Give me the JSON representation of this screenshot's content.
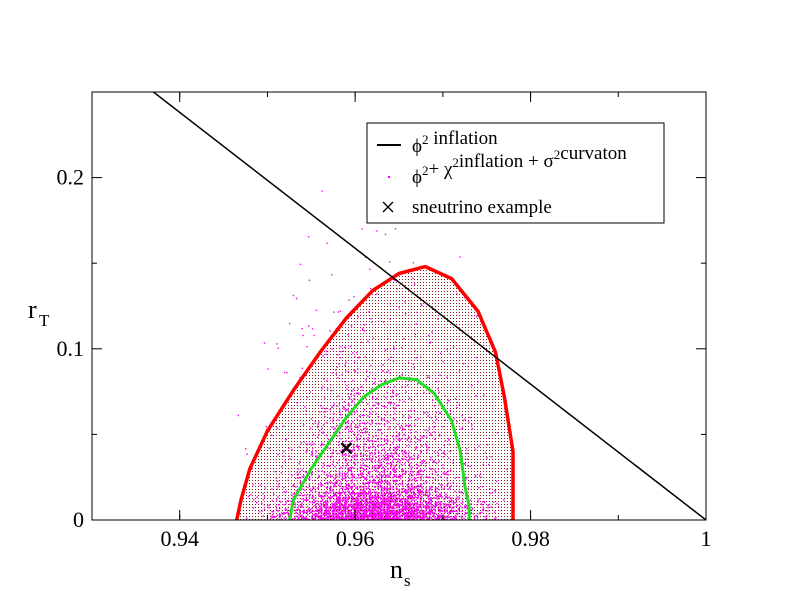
{
  "chart_data": {
    "type": "scatter",
    "x_axis": {
      "label": "n",
      "label_sub": "s",
      "range": [
        0.93,
        1.0
      ],
      "ticks": [
        0.94,
        0.96,
        0.98,
        1.0
      ],
      "tick_labels": [
        "0.94",
        "0.96",
        "0.98",
        "1"
      ]
    },
    "y_axis": {
      "label": "r",
      "label_sub": "T",
      "range": [
        0,
        0.25
      ],
      "ticks": [
        0,
        0.1,
        0.2
      ],
      "tick_labels": [
        "0",
        "0.1",
        "0.2"
      ]
    },
    "grid": false,
    "legend_position": "top-right",
    "legend": [
      {
        "text": "ϕ² inflation",
        "parts": [
          [
            "ϕ",
            ""
          ],
          [
            "2",
            "sup"
          ],
          [
            " inflation",
            ""
          ]
        ],
        "marker": "line",
        "color": "#000000"
      },
      {
        "text": "ϕ²+ χ²inflation + σ²curvaton",
        "parts": [
          [
            "ϕ",
            ""
          ],
          [
            "2",
            "sup"
          ],
          [
            "+ χ",
            ""
          ],
          [
            "2",
            "sup"
          ],
          [
            "inflation + σ",
            ""
          ],
          [
            "2",
            "sup"
          ],
          [
            "curvaton",
            ""
          ]
        ],
        "marker": "dot",
        "color": "#ff00ff"
      },
      {
        "text": "sneutrino example",
        "parts": [
          [
            "sneutrino example",
            ""
          ]
        ],
        "marker": "cross",
        "color": "#000000"
      }
    ],
    "series": [
      {
        "name": "ϕ² inflation",
        "kind": "line",
        "color": "#000000",
        "x": [
          0.937,
          1.0
        ],
        "y": [
          0.25,
          0.0
        ]
      },
      {
        "name": "ϕ²+ χ²inflation + σ²curvaton",
        "kind": "scatter-cloud",
        "color": "#ff00ff",
        "x_range": [
          0.936,
          0.981
        ],
        "y_range": [
          0,
          0.24
        ]
      },
      {
        "name": "sneutrino example",
        "kind": "marker",
        "color": "#000000",
        "x": [
          0.959
        ],
        "y": [
          0.042
        ]
      }
    ],
    "contours": [
      {
        "kind": "outer",
        "color": "#ff0000",
        "x": [
          0.9465,
          0.947,
          0.948,
          0.95,
          0.953,
          0.956,
          0.959,
          0.962,
          0.965,
          0.968,
          0.971,
          0.974,
          0.976,
          0.977,
          0.978,
          0.978
        ],
        "y": [
          0.0,
          0.012,
          0.03,
          0.052,
          0.076,
          0.098,
          0.118,
          0.134,
          0.144,
          0.148,
          0.141,
          0.122,
          0.098,
          0.072,
          0.04,
          0.0
        ]
      },
      {
        "kind": "inner",
        "color": "#22dd22",
        "x": [
          0.9525,
          0.953,
          0.955,
          0.957,
          0.959,
          0.961,
          0.963,
          0.965,
          0.967,
          0.969,
          0.971,
          0.972,
          0.9725,
          0.973,
          0.973
        ],
        "y": [
          0.0,
          0.012,
          0.03,
          0.045,
          0.06,
          0.072,
          0.079,
          0.083,
          0.082,
          0.074,
          0.058,
          0.04,
          0.02,
          0.008,
          0.0
        ]
      }
    ]
  }
}
